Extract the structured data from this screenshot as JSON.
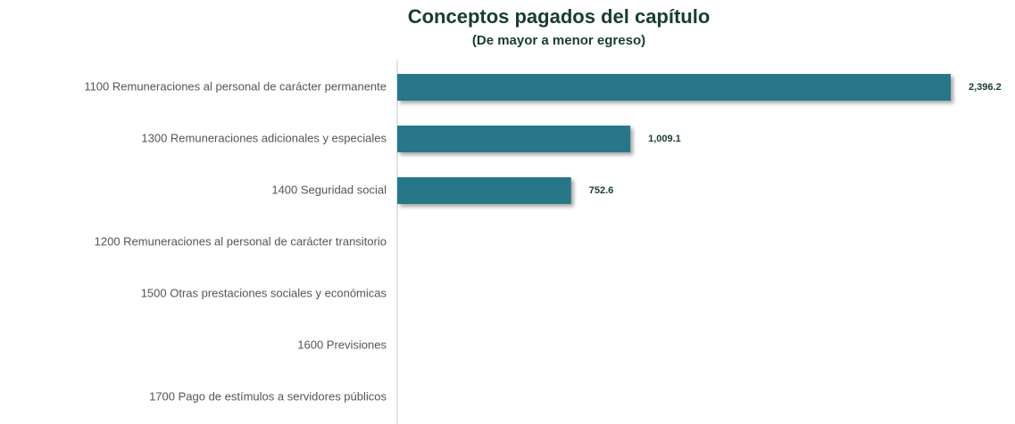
{
  "chart_data": {
    "type": "bar",
    "orientation": "horizontal",
    "title": "Conceptos pagados del capítulo",
    "subtitle": "(De mayor a menor egreso)",
    "categories": [
      "1100 Remuneraciones al personal de carácter permanente",
      "1300 Remuneraciones adicionales y especiales",
      "1400 Seguridad social",
      "1200  Remuneraciones al personal de carácter transitorio",
      "1500 Otras prestaciones sociales y económicas",
      "1600 Previsiones",
      "1700 Pago de estímulos a servidores públicos"
    ],
    "values": [
      2396.2,
      1009.1,
      752.6,
      null,
      null,
      null,
      null
    ],
    "value_labels": [
      "2,396.2",
      "1,009.1",
      "752.6",
      null,
      null,
      null,
      null
    ],
    "color": "#287789"
  }
}
